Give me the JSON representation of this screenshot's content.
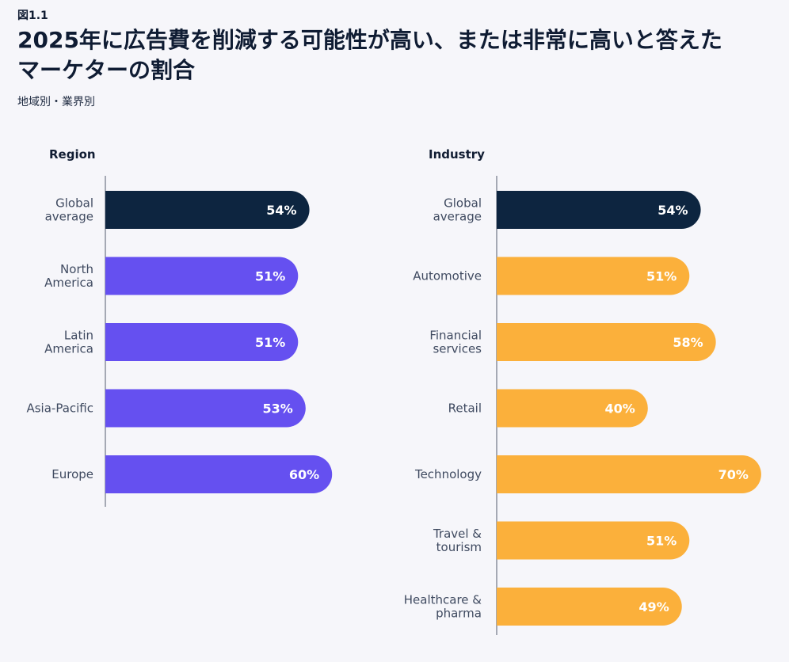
{
  "figure_label": "図1.1",
  "title": "2025年に広告費を削減する可能性が高い、または非常に高いと答えたマーケターの割合",
  "subtitle": "地域別・業界別",
  "colors": {
    "highlight": "#0d2540",
    "region": "#6550f0",
    "industry": "#fbb03b",
    "axis": "#8a8f9c"
  },
  "chart_data": [
    {
      "type": "bar",
      "orientation": "horizontal",
      "title": "Region",
      "categories": [
        [
          "Global",
          "average"
        ],
        [
          "North",
          "America"
        ],
        [
          "Latin",
          "America"
        ],
        [
          "Asia-Pacific"
        ],
        [
          "Europe"
        ]
      ],
      "values": [
        54,
        51,
        51,
        53,
        60
      ],
      "value_labels": [
        "54%",
        "51%",
        "51%",
        "53%",
        "60%"
      ],
      "highlight_index": 0,
      "xlim": [
        0,
        60
      ],
      "unit": "%"
    },
    {
      "type": "bar",
      "orientation": "horizontal",
      "title": "Industry",
      "categories": [
        [
          "Global",
          "average"
        ],
        [
          "Automotive"
        ],
        [
          "Financial",
          "services"
        ],
        [
          "Retail"
        ],
        [
          "Technology"
        ],
        [
          "Travel &",
          "tourism"
        ],
        [
          "Healthcare &",
          "pharma"
        ]
      ],
      "values": [
        54,
        51,
        58,
        40,
        70,
        51,
        49
      ],
      "value_labels": [
        "54%",
        "51%",
        "58%",
        "40%",
        "70%",
        "51%",
        "49%"
      ],
      "highlight_index": 0,
      "xlim": [
        0,
        70
      ],
      "unit": "%"
    }
  ]
}
